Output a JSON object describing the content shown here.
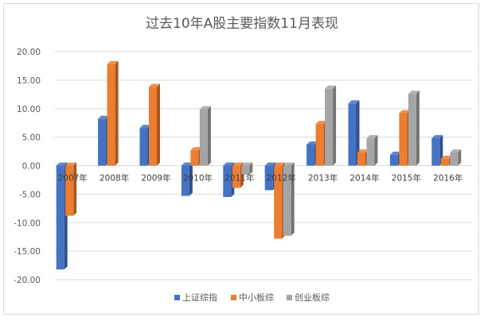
{
  "chart_data": {
    "type": "bar",
    "title": "过去10年A股主要指数11月表现",
    "xlabel": "",
    "ylabel": "",
    "categories": [
      "2007年",
      "2008年",
      "2009年",
      "2010年",
      "2011年",
      "2012年",
      "2013年",
      "2014年",
      "2015年",
      "2016年"
    ],
    "series": [
      {
        "name": "上证综指",
        "color": "#4472c4",
        "values": [
          -18.2,
          8.2,
          6.6,
          -5.3,
          -5.5,
          -4.3,
          3.7,
          10.9,
          1.9,
          4.8
        ]
      },
      {
        "name": "中小板综",
        "color": "#ed7d31",
        "values": [
          -8.8,
          17.8,
          13.8,
          2.7,
          -3.9,
          -12.8,
          7.3,
          2.3,
          9.2,
          1.2
        ]
      },
      {
        "name": "创业板综",
        "color": "#a5a5a5",
        "values": [
          null,
          null,
          null,
          9.9,
          -1.6,
          -12.3,
          13.5,
          4.8,
          12.6,
          2.3
        ]
      }
    ],
    "ylim": [
      -20,
      20
    ],
    "yticks": [
      "20.00",
      "15.00",
      "10.00",
      "5.00",
      "0.00",
      "-5.00",
      "-10.00",
      "-15.00",
      "-20.00"
    ],
    "ytick_values": [
      20,
      15,
      10,
      5,
      0,
      -5,
      -10,
      -15,
      -20
    ],
    "grid": true,
    "legend_position": "bottom"
  }
}
